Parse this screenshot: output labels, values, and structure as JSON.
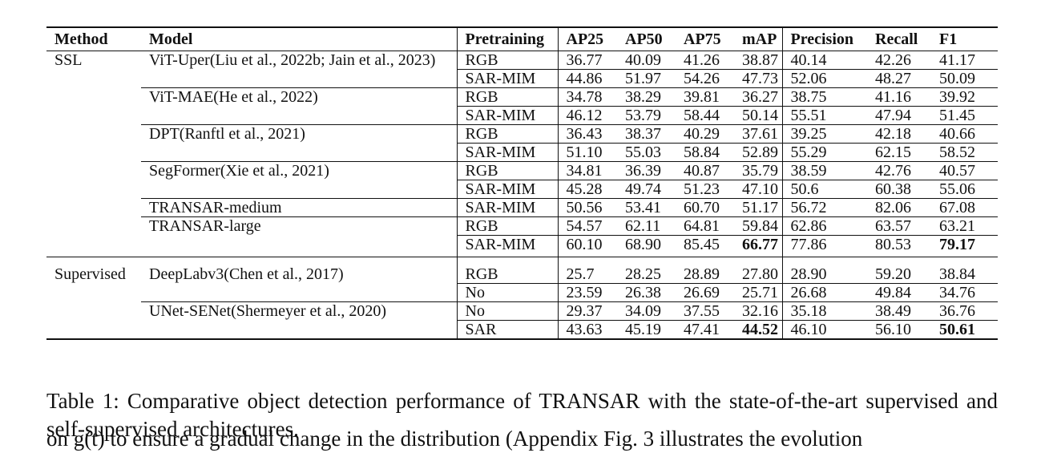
{
  "table": {
    "headers": [
      "Method",
      "Model",
      "Pretraining",
      "AP25",
      "AP50",
      "AP75",
      "mAP",
      "Precision",
      "Recall",
      "F1"
    ],
    "groups": [
      {
        "method": "SSL",
        "rows": [
          {
            "model": "ViT-Uper(Liu et al., 2022b; Jain et al., 2023)",
            "pretraining": "RGB",
            "ap25": "36.77",
            "ap50": "40.09",
            "ap75": "41.26",
            "map": "38.87",
            "precision": "40.14",
            "recall": "42.26",
            "f1": "41.17"
          },
          {
            "model": "",
            "pretraining": "SAR-MIM",
            "ap25": "44.86",
            "ap50": "51.97",
            "ap75": "54.26",
            "map": "47.73",
            "precision": "52.06",
            "recall": "48.27",
            "f1": "50.09"
          },
          {
            "model": "ViT-MAE(He et al., 2022)",
            "pretraining": "RGB",
            "ap25": "34.78",
            "ap50": "38.29",
            "ap75": "39.81",
            "map": "36.27",
            "precision": "38.75",
            "recall": "41.16",
            "f1": "39.92"
          },
          {
            "model": "",
            "pretraining": "SAR-MIM",
            "ap25": "46.12",
            "ap50": "53.79",
            "ap75": "58.44",
            "map": "50.14",
            "precision": "55.51",
            "recall": "47.94",
            "f1": "51.45"
          },
          {
            "model": "DPT(Ranftl et al., 2021)",
            "pretraining": "RGB",
            "ap25": "36.43",
            "ap50": "38.37",
            "ap75": "40.29",
            "map": "37.61",
            "precision": "39.25",
            "recall": "42.18",
            "f1": "40.66"
          },
          {
            "model": "",
            "pretraining": "SAR-MIM",
            "ap25": "51.10",
            "ap50": "55.03",
            "ap75": "58.84",
            "map": "52.89",
            "precision": "55.29",
            "recall": "62.15",
            "f1": "58.52"
          },
          {
            "model": "SegFormer(Xie et al., 2021)",
            "pretraining": "RGB",
            "ap25": "34.81",
            "ap50": "36.39",
            "ap75": "40.87",
            "map": "35.79",
            "precision": "38.59",
            "recall": "42.76",
            "f1": "40.57"
          },
          {
            "model": "",
            "pretraining": "SAR-MIM",
            "ap25": "45.28",
            "ap50": "49.74",
            "ap75": "51.23",
            "map": "47.10",
            "precision": "50.6",
            "recall": "60.38",
            "f1": "55.06"
          },
          {
            "model": "TRANSAR-medium",
            "pretraining": "SAR-MIM",
            "ap25": "50.56",
            "ap50": "53.41",
            "ap75": "60.70",
            "map": "51.17",
            "precision": "56.72",
            "recall": "82.06",
            "f1": "67.08"
          },
          {
            "model": "TRANSAR-large",
            "pretraining": "RGB",
            "ap25": "54.57",
            "ap50": "62.11",
            "ap75": "64.81",
            "map": "59.84",
            "precision": "62.86",
            "recall": "63.57",
            "f1": "63.21"
          },
          {
            "model": "",
            "pretraining": "SAR-MIM",
            "ap25": "60.10",
            "ap50": "68.90",
            "ap75": "85.45",
            "map": "66.77",
            "precision": "77.86",
            "recall": "80.53",
            "f1": "79.17",
            "bold": [
              "map",
              "f1"
            ]
          }
        ]
      },
      {
        "method": "Supervised",
        "rows": [
          {
            "model": "DeepLabv3(Chen et al., 2017)",
            "pretraining": "RGB",
            "ap25": "25.7",
            "ap50": "28.25",
            "ap75": "28.89",
            "map": "27.80",
            "precision": "28.90",
            "recall": "59.20",
            "f1": "38.84"
          },
          {
            "model": "",
            "pretraining": "No",
            "ap25": "23.59",
            "ap50": "26.38",
            "ap75": "26.69",
            "map": "25.71",
            "precision": "26.68",
            "recall": "49.84",
            "f1": "34.76"
          },
          {
            "model": "UNet-SENet(Shermeyer et al., 2020)",
            "pretraining": "No",
            "ap25": "29.37",
            "ap50": "34.09",
            "ap75": "37.55",
            "map": "32.16",
            "precision": "35.18",
            "recall": "38.49",
            "f1": "36.76"
          },
          {
            "model": "",
            "pretraining": "SAR",
            "ap25": "43.63",
            "ap50": "45.19",
            "ap75": "47.41",
            "map": "44.52",
            "precision": "46.10",
            "recall": "56.10",
            "f1": "50.61",
            "bold": [
              "map",
              "f1"
            ]
          }
        ]
      }
    ]
  },
  "caption": "Table 1: Comparative object detection performance of TRANSAR with the state-of-the-art supervised and self-supervised architectures.",
  "continuation": "on g(t) to ensure a gradual change in the distribution (Appendix Fig. 3 illustrates the evolution"
}
